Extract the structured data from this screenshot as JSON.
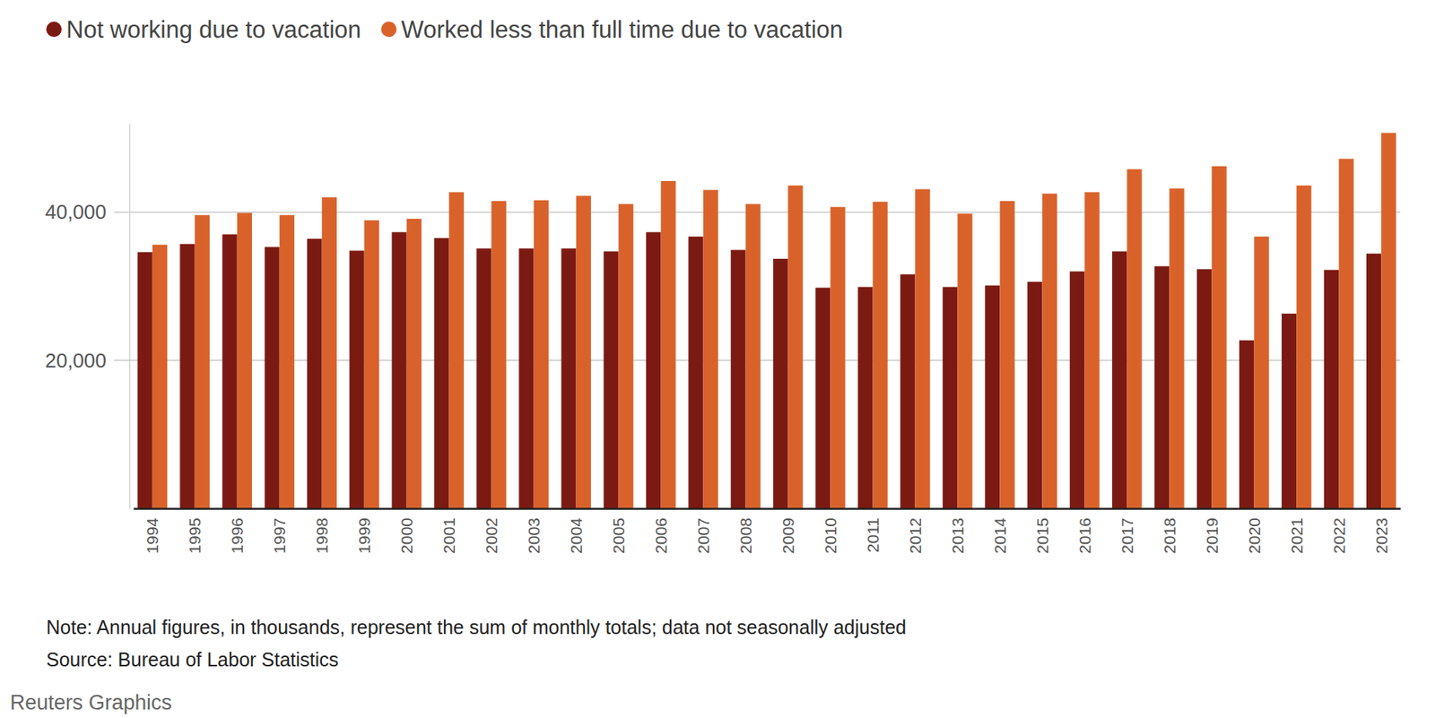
{
  "chart_data": {
    "type": "bar",
    "categories": [
      "1994",
      "1995",
      "1996",
      "1997",
      "1998",
      "1999",
      "2000",
      "2001",
      "2002",
      "2003",
      "2004",
      "2005",
      "2006",
      "2007",
      "2008",
      "2009",
      "2010",
      "2011",
      "2012",
      "2013",
      "2014",
      "2015",
      "2016",
      "2017",
      "2018",
      "2019",
      "2020",
      "2021",
      "2022",
      "2023"
    ],
    "series": [
      {
        "name": "Not working due to vacation",
        "color": "#7b1a12",
        "values": [
          34600,
          35700,
          37000,
          35300,
          36400,
          34800,
          37300,
          36500,
          35100,
          35100,
          35100,
          34700,
          37300,
          36700,
          34900,
          33700,
          29800,
          29900,
          31600,
          29900,
          30100,
          30600,
          32000,
          34700,
          32700,
          32300,
          22700,
          26300,
          32200,
          34400
        ]
      },
      {
        "name": "Worked less than full time due to vacation",
        "color": "#d9622b",
        "values": [
          35600,
          39600,
          39900,
          39600,
          42000,
          38900,
          39100,
          42700,
          41500,
          41600,
          42200,
          41100,
          44200,
          43000,
          41100,
          43600,
          40700,
          41400,
          43100,
          39800,
          41500,
          42500,
          42700,
          45800,
          43200,
          46200,
          36700,
          43600,
          47200,
          50700
        ]
      }
    ],
    "ylim": [
      0,
      52000
    ],
    "yticks": [
      {
        "value": 20000,
        "label": "20,000"
      },
      {
        "value": 40000,
        "label": "40,000"
      }
    ],
    "grid": true,
    "legend": "top-left",
    "notes": [
      "Note: Annual figures, in thousands, represent the sum of monthly totals; data not seasonally adjusted",
      "Source: Bureau of Labor Statistics"
    ],
    "credit": "Reuters Graphics"
  }
}
